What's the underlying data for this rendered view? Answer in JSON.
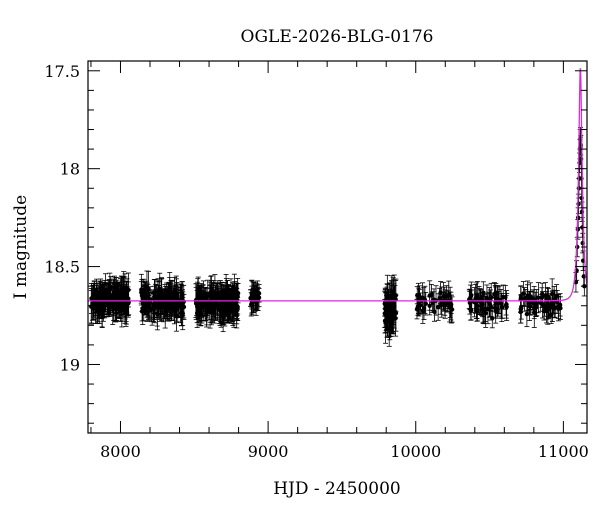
{
  "chart_data": {
    "type": "scatter",
    "title": "OGLE-2026-BLG-0176",
    "xlabel": "HJD - 2450000",
    "ylabel": "I magnitude",
    "xlim": [
      7780,
      11160
    ],
    "ylim": [
      19.35,
      17.45
    ],
    "y_inverted": true,
    "x_ticks": [
      8000,
      9000,
      10000,
      11000
    ],
    "x_tick_labels": [
      "8000",
      "9000",
      "10000",
      "11000"
    ],
    "y_ticks": [
      17.5,
      18,
      18.5,
      19
    ],
    "y_tick_labels": [
      "17.5",
      "18",
      "18.5",
      "19"
    ],
    "grid": false,
    "legend": "none",
    "series": [
      {
        "kind": "observations",
        "color": "#000000",
        "segments": [
          {
            "x_start": 7800,
            "x_end": 8060,
            "mag_mean": 18.67,
            "mag_scatter": 0.07,
            "err": 0.07,
            "count": 150
          },
          {
            "x_start": 8140,
            "x_end": 8430,
            "mag_mean": 18.68,
            "mag_scatter": 0.07,
            "err": 0.07,
            "count": 150
          },
          {
            "x_start": 8510,
            "x_end": 8800,
            "mag_mean": 18.68,
            "mag_scatter": 0.07,
            "err": 0.07,
            "count": 170
          },
          {
            "x_start": 8880,
            "x_end": 8940,
            "mag_mean": 18.66,
            "mag_scatter": 0.05,
            "err": 0.06,
            "count": 25
          },
          {
            "x_start": 9790,
            "x_end": 9870,
            "mag_mean": 18.72,
            "mag_scatter": 0.1,
            "err": 0.08,
            "count": 60
          },
          {
            "x_start": 9990,
            "x_end": 10250,
            "mag_mean": 18.68,
            "mag_scatter": 0.05,
            "err": 0.06,
            "count": 45
          },
          {
            "x_start": 10360,
            "x_end": 10620,
            "mag_mean": 18.69,
            "mag_scatter": 0.06,
            "err": 0.06,
            "count": 60
          },
          {
            "x_start": 10710,
            "x_end": 10980,
            "mag_mean": 18.69,
            "mag_scatter": 0.06,
            "err": 0.06,
            "count": 60
          }
        ],
        "event_points": [
          {
            "x": 11085,
            "y": 18.58
          },
          {
            "x": 11090,
            "y": 18.52
          },
          {
            "x": 11094,
            "y": 18.4
          },
          {
            "x": 11098,
            "y": 18.31
          },
          {
            "x": 11100,
            "y": 18.25
          },
          {
            "x": 11103,
            "y": 18.18
          },
          {
            "x": 11105,
            "y": 18.1
          },
          {
            "x": 11107,
            "y": 18.05
          },
          {
            "x": 11110,
            "y": 17.97
          },
          {
            "x": 11112,
            "y": 17.9
          },
          {
            "x": 11114,
            "y": 17.85
          },
          {
            "x": 11116,
            "y": 17.84
          },
          {
            "x": 11118,
            "y": 17.88
          },
          {
            "x": 11120,
            "y": 17.95
          },
          {
            "x": 11122,
            "y": 18.05
          },
          {
            "x": 11124,
            "y": 18.15
          },
          {
            "x": 11126,
            "y": 18.22
          },
          {
            "x": 11128,
            "y": 18.3
          },
          {
            "x": 11131,
            "y": 18.38
          },
          {
            "x": 11134,
            "y": 18.47
          },
          {
            "x": 11138,
            "y": 18.55
          },
          {
            "x": 11142,
            "y": 18.6
          }
        ],
        "event_err": 0.05
      },
      {
        "kind": "model",
        "color": "#d62fd6",
        "baseline_mag": 18.675,
        "t0": 11115,
        "tE": 25,
        "u0": 0.35
      }
    ]
  }
}
